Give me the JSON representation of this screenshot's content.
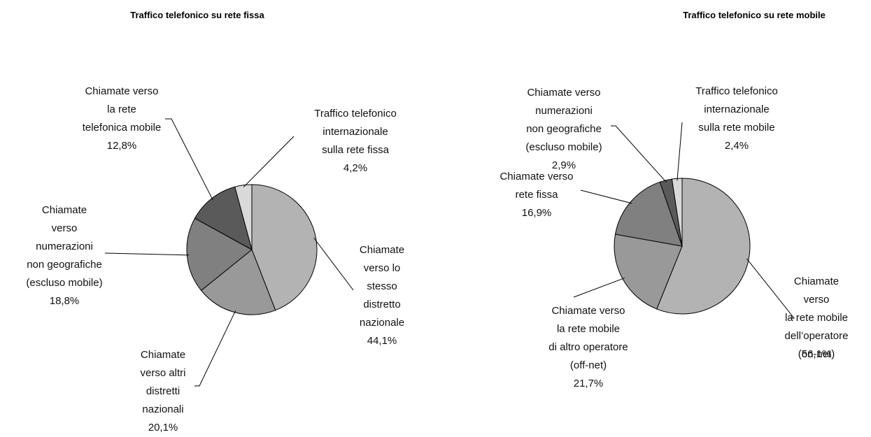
{
  "chart_data": [
    {
      "type": "pie",
      "title": "Traffico telefonico su rete fissa",
      "categories": [
        "Chiamate\nverso lo\nstesso\ndistretto\nnazionale",
        "Chiamate\nverso altri\ndistretti\nnazionali",
        "Chiamate\nverso\nnumerazioni\nnon geografiche\n(escluso mobile)",
        "Chiamate verso\nla rete\ntelefonica mobile",
        "Traffico telefonico\ninternazionale\nsulla rete fissa"
      ],
      "values": [
        44.1,
        20.1,
        18.8,
        12.8,
        4.2
      ],
      "value_labels": [
        "44,1%",
        "20,1%",
        "18,8%",
        "12,8%",
        "4,2%"
      ],
      "colors": [
        "#b3b3b3",
        "#999999",
        "#808080",
        "#5a5a5a",
        "#d9d9d9"
      ]
    },
    {
      "type": "pie",
      "title": "Traffico telefonico su rete mobile",
      "categories": [
        "Chiamate verso\nla rete mobile\ndell’operatore\n(on-net)",
        "Chiamate verso\nla rete mobile\ndi altro operatore\n(off-net)",
        "Chiamate verso\nrete fissa",
        "Chiamate verso\nnumerazioni\nnon geografiche\n(escluso mobile)",
        "Traffico telefonico\ninternazionale\nsulla rete mobile"
      ],
      "values": [
        56.1,
        21.7,
        16.9,
        2.9,
        2.4
      ],
      "value_labels": [
        "56,1%",
        "21,7%",
        "16,9%",
        "2,9%",
        "2,4%"
      ],
      "colors": [
        "#b3b3b3",
        "#999999",
        "#808080",
        "#5a5a5a",
        "#d9d9d9"
      ]
    }
  ]
}
